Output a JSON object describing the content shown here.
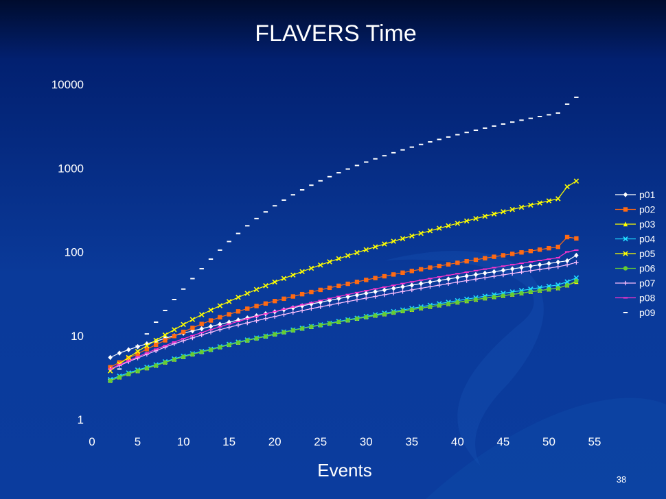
{
  "slide": {
    "page_number": "38"
  },
  "chart_data": {
    "type": "line",
    "title": "FLAVERS Time",
    "xlabel": "Events",
    "ylabel": "",
    "xlim": [
      0,
      55
    ],
    "xticks": [
      0,
      5,
      10,
      15,
      20,
      25,
      30,
      35,
      40,
      45,
      50,
      55
    ],
    "ylim": [
      1,
      10000
    ],
    "yscale": "log",
    "yticks": [
      1,
      10,
      100,
      1000,
      10000
    ],
    "grid": false,
    "legend_position": "right",
    "x": [
      2,
      3,
      4,
      5,
      6,
      7,
      8,
      9,
      10,
      11,
      12,
      13,
      14,
      15,
      16,
      17,
      18,
      19,
      20,
      21,
      22,
      23,
      24,
      25,
      26,
      27,
      28,
      29,
      30,
      31,
      32,
      33,
      34,
      35,
      36,
      37,
      38,
      39,
      40,
      41,
      42,
      43,
      44,
      45,
      46,
      47,
      48,
      49,
      50,
      51,
      52,
      53
    ],
    "series": [
      {
        "name": "p01",
        "color": "#ffffff",
        "marker": "diamond",
        "values": [
          5.5,
          6.2,
          6.8,
          7.4,
          8.0,
          8.6,
          9.3,
          10.0,
          10.7,
          11.4,
          12.1,
          12.9,
          13.7,
          14.5,
          15.4,
          16.3,
          17.3,
          18.3,
          19.3,
          20.4,
          21.5,
          22.7,
          23.9,
          25.1,
          26.4,
          27.7,
          29.1,
          30.5,
          32.0,
          33.5,
          35.1,
          36.7,
          38.4,
          40.1,
          41.9,
          43.7,
          45.6,
          47.5,
          49.5,
          51.5,
          53.6,
          55.8,
          58.0,
          60.3,
          62.7,
          65.1,
          67.6,
          70.2,
          72.8,
          75.5,
          78.3,
          91.0
        ]
      },
      {
        "name": "p02",
        "color": "#ff6a13",
        "marker": "square",
        "values": [
          4.2,
          4.8,
          5.4,
          6.1,
          6.9,
          7.8,
          8.8,
          9.9,
          11.1,
          12.4,
          13.8,
          15.2,
          16.6,
          18.0,
          19.5,
          21.0,
          22.6,
          24.2,
          25.9,
          27.6,
          29.4,
          31.3,
          33.2,
          35.2,
          37.3,
          39.4,
          41.6,
          43.9,
          46.3,
          48.7,
          51.2,
          53.8,
          56.5,
          59.2,
          62.0,
          64.9,
          67.9,
          71.0,
          74.1,
          77.3,
          80.6,
          84.0,
          87.5,
          91.1,
          94.8,
          98.6,
          102.5,
          106.5,
          110.6,
          114.8,
          150.0,
          145.0
        ]
      },
      {
        "name": "p03",
        "color": "#ffff00",
        "marker": "triangle",
        "values": [
          2.9,
          3.2,
          3.5,
          3.8,
          4.1,
          4.4,
          4.8,
          5.2,
          5.6,
          6.0,
          6.4,
          6.8,
          7.3,
          7.8,
          8.3,
          8.8,
          9.3,
          9.8,
          10.4,
          11.0,
          11.6,
          12.2,
          12.8,
          13.4,
          14.0,
          14.6,
          15.3,
          16.0,
          16.7,
          17.4,
          18.1,
          18.9,
          19.7,
          20.5,
          21.3,
          22.2,
          23.1,
          24.0,
          25.0,
          26.0,
          27.0,
          28.0,
          29.0,
          30.0,
          31.1,
          32.2,
          33.4,
          34.6,
          35.8,
          37.0,
          40.0,
          44.0
        ]
      },
      {
        "name": "p04",
        "color": "#22ddff",
        "marker": "x",
        "values": [
          3.0,
          3.3,
          3.6,
          3.9,
          4.2,
          4.5,
          4.9,
          5.3,
          5.7,
          6.1,
          6.5,
          6.9,
          7.4,
          7.9,
          8.4,
          8.9,
          9.4,
          9.9,
          10.5,
          11.1,
          11.7,
          12.3,
          12.9,
          13.5,
          14.1,
          14.8,
          15.5,
          16.2,
          17.0,
          17.8,
          18.6,
          19.4,
          20.3,
          21.2,
          22.1,
          23.1,
          24.1,
          25.1,
          26.2,
          27.3,
          28.4,
          29.6,
          30.8,
          32.0,
          33.3,
          34.6,
          36.0,
          37.4,
          38.9,
          40.4,
          44.0,
          49.0
        ]
      },
      {
        "name": "p05",
        "color": "#ffff00",
        "marker": "x",
        "values": [
          3.8,
          4.6,
          5.5,
          6.5,
          7.6,
          8.8,
          10.2,
          11.8,
          13.6,
          15.6,
          17.8,
          20.2,
          22.8,
          25.6,
          28.7,
          32.0,
          35.6,
          39.5,
          43.7,
          48.2,
          53.0,
          58.2,
          63.8,
          69.8,
          76.2,
          83.0,
          90.3,
          98.0,
          106.2,
          114.9,
          124.1,
          133.8,
          144.1,
          155.0,
          166.5,
          178.6,
          191.4,
          204.9,
          219.1,
          234.0,
          249.7,
          266.2,
          283.5,
          301.7,
          320.8,
          340.8,
          361.8,
          383.8,
          406.9,
          431.1,
          600.0,
          700.0
        ]
      },
      {
        "name": "p06",
        "color": "#66cc33",
        "marker": "circle",
        "values": [
          2.9,
          3.2,
          3.5,
          3.8,
          4.1,
          4.4,
          4.8,
          5.2,
          5.6,
          6.0,
          6.4,
          6.8,
          7.3,
          7.8,
          8.3,
          8.8,
          9.3,
          9.8,
          10.4,
          11.0,
          11.6,
          12.2,
          12.8,
          13.4,
          14.0,
          14.6,
          15.3,
          16.0,
          16.7,
          17.4,
          18.1,
          18.9,
          19.7,
          20.5,
          21.3,
          22.2,
          23.1,
          24.0,
          25.0,
          26.0,
          27.0,
          28.0,
          29.0,
          30.0,
          31.1,
          32.2,
          33.4,
          34.6,
          35.8,
          37.0,
          40.0,
          45.0
        ]
      },
      {
        "name": "p07",
        "color": "#ffc0ff",
        "marker": "plus",
        "values": [
          4.0,
          4.4,
          4.9,
          5.4,
          6.0,
          6.6,
          7.3,
          8.0,
          8.7,
          9.4,
          10.2,
          11.0,
          11.8,
          12.6,
          13.4,
          14.2,
          15.1,
          16.0,
          16.9,
          17.9,
          18.9,
          19.9,
          21.0,
          22.1,
          23.2,
          24.4,
          25.6,
          26.8,
          28.1,
          29.4,
          30.8,
          32.2,
          33.7,
          35.2,
          36.8,
          38.4,
          40.1,
          41.8,
          43.6,
          45.4,
          47.3,
          49.2,
          51.2,
          53.2,
          55.3,
          57.4,
          59.6,
          61.8,
          64.1,
          66.5,
          70.0,
          75.0
        ]
      },
      {
        "name": "p08",
        "color": "#ff33cc",
        "marker": "dash",
        "values": [
          4.0,
          4.5,
          5.0,
          5.6,
          6.2,
          6.9,
          7.6,
          8.4,
          9.2,
          10.0,
          10.9,
          11.8,
          12.8,
          13.8,
          14.8,
          15.9,
          17.0,
          18.2,
          19.4,
          20.7,
          22.0,
          23.4,
          24.8,
          26.3,
          27.8,
          29.4,
          31.0,
          32.7,
          34.4,
          36.2,
          38.0,
          39.9,
          41.9,
          43.9,
          46.0,
          48.1,
          50.3,
          52.6,
          54.9,
          57.3,
          59.8,
          62.3,
          64.9,
          67.6,
          70.3,
          73.1,
          76.0,
          79.0,
          82.0,
          85.1,
          100.0,
          105.0
        ]
      },
      {
        "name": "p09",
        "color": "#ffffff",
        "marker": "dash-only",
        "values": [
          3.0,
          4.0,
          5.5,
          7.5,
          10.5,
          14.5,
          20.0,
          27.0,
          36.0,
          48.0,
          63.0,
          82.0,
          105.0,
          133.0,
          166.0,
          205.0,
          250.0,
          300.0,
          355.0,
          415.0,
          480.0,
          550.0,
          625.0,
          705.0,
          790.0,
          880.0,
          975.0,
          1075.0,
          1180.0,
          1290.0,
          1405.0,
          1525.0,
          1650.0,
          1780.0,
          1915.0,
          2055.0,
          2200.0,
          2350.0,
          2505.0,
          2665.0,
          2830.0,
          3000.0,
          3175.0,
          3355.0,
          3540.0,
          3730.0,
          3925.0,
          4125.0,
          4330.0,
          4540.0,
          5800.0,
          7000.0
        ]
      }
    ]
  }
}
